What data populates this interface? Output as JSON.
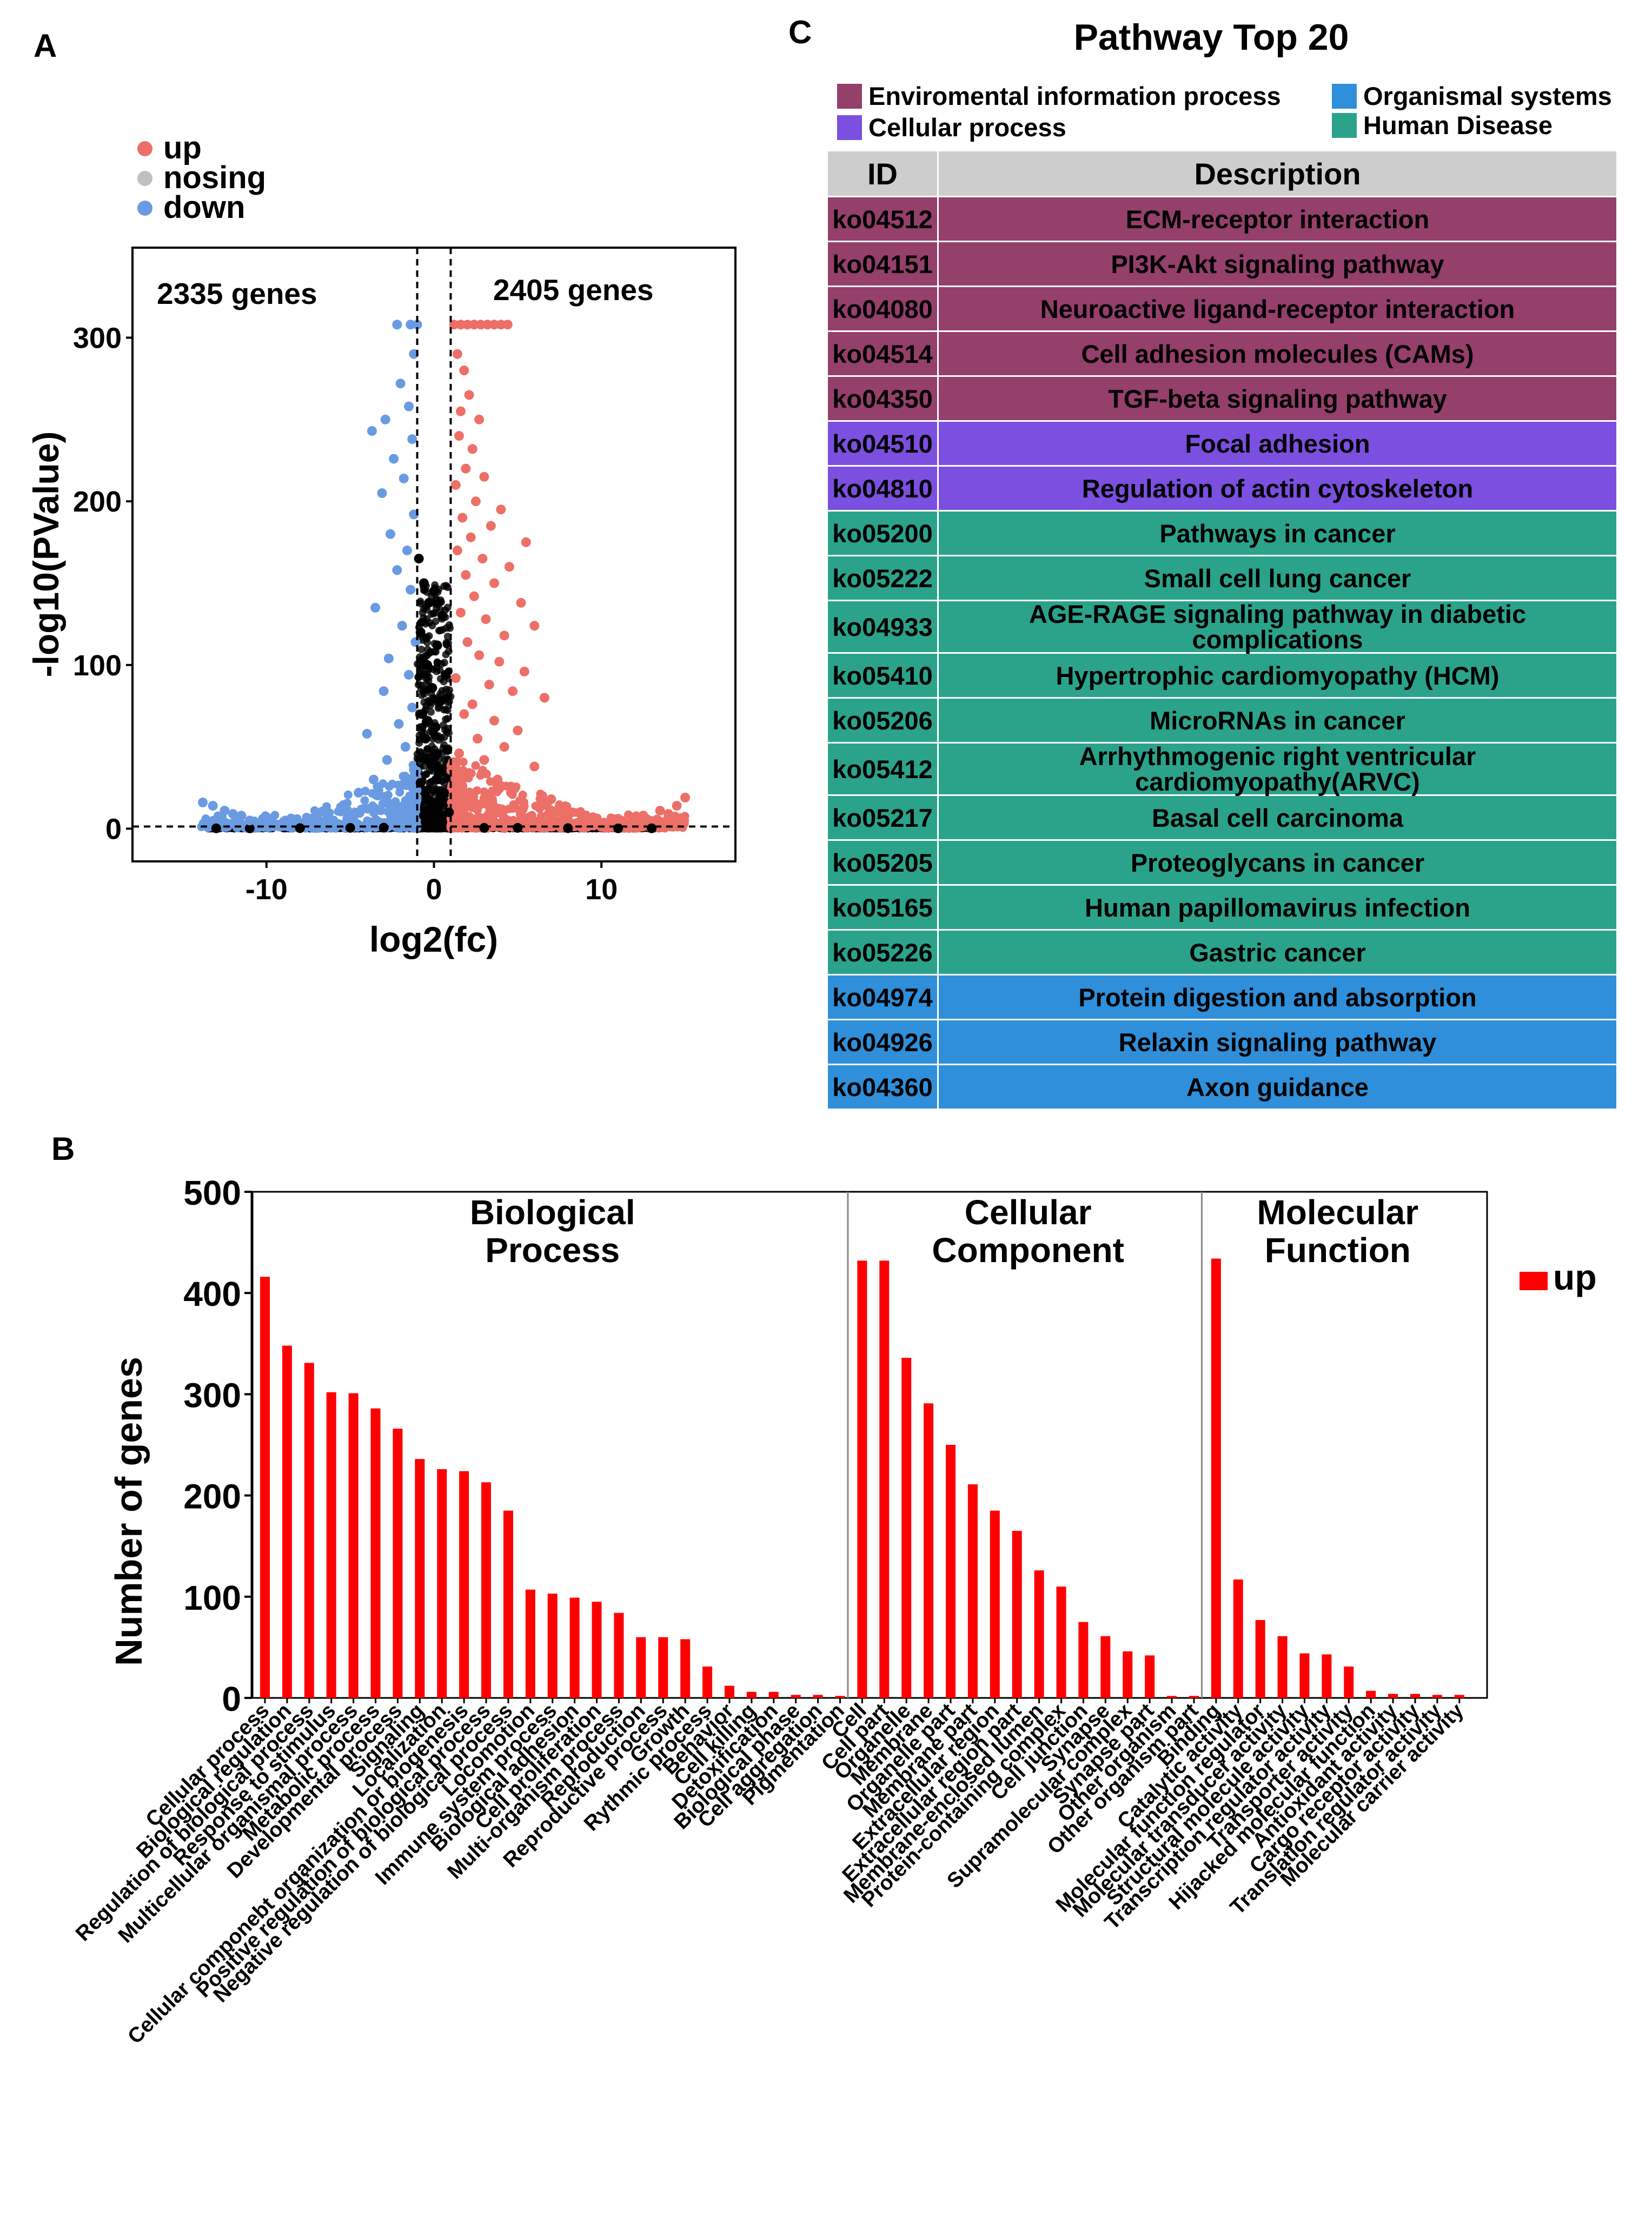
{
  "panel_labels": {
    "a": "A",
    "b": "B",
    "c": "C"
  },
  "colors": {
    "up": "#ec7068",
    "nosing": "#c0c0c0",
    "down": "#6a9be2",
    "bar_up": "#ff0000",
    "environmental": "#953f6b",
    "cellular": "#7b4fe0",
    "organismal": "#2f8fda",
    "human_disease": "#2ba38a",
    "header": "#cdcdcd"
  },
  "chart_data": [
    {
      "type": "scatter",
      "panel": "A",
      "legend": [
        "up",
        "nosing",
        "down"
      ],
      "annotations": {
        "left": "2335 genes",
        "right": "2405 genes"
      },
      "xlabel": "log2(fc)",
      "ylabel": "-log10(PValue)",
      "xlim": [
        -18,
        18
      ],
      "ylim": [
        -20,
        355
      ],
      "xticks": [
        -10,
        0,
        10
      ],
      "yticks": [
        0,
        100,
        200,
        300
      ],
      "thresholds": {
        "log2fc": [
          -1,
          1
        ],
        "pvalue_line": 1.3
      },
      "counts": {
        "down": 2335,
        "up": 2405
      },
      "highlighted_points": {
        "up": [
          [
            1.2,
            308
          ],
          [
            1.6,
            308
          ],
          [
            2.0,
            308
          ],
          [
            2.4,
            308
          ],
          [
            2.8,
            308
          ],
          [
            3.2,
            308
          ],
          [
            3.6,
            308
          ],
          [
            4.0,
            308
          ],
          [
            4.4,
            308
          ],
          [
            1.4,
            290
          ],
          [
            1.8,
            280
          ],
          [
            2.1,
            265
          ],
          [
            1.6,
            255
          ],
          [
            2.7,
            250
          ],
          [
            1.5,
            240
          ],
          [
            2.3,
            232
          ],
          [
            1.9,
            220
          ],
          [
            3.0,
            215
          ],
          [
            1.3,
            210
          ],
          [
            2.5,
            200
          ],
          [
            4.0,
            195
          ],
          [
            1.7,
            190
          ],
          [
            3.4,
            185
          ],
          [
            2.2,
            178
          ],
          [
            5.5,
            175
          ],
          [
            1.4,
            170
          ],
          [
            2.9,
            165
          ],
          [
            4.5,
            160
          ],
          [
            1.9,
            155
          ],
          [
            3.6,
            150
          ],
          [
            2.4,
            142
          ],
          [
            5.2,
            138
          ],
          [
            1.6,
            132
          ],
          [
            3.1,
            128
          ],
          [
            6.0,
            124
          ],
          [
            4.2,
            118
          ],
          [
            2.0,
            114
          ],
          [
            2.7,
            106
          ],
          [
            3.9,
            102
          ],
          [
            5.4,
            96
          ],
          [
            1.3,
            92
          ],
          [
            3.3,
            88
          ],
          [
            4.7,
            84
          ],
          [
            6.6,
            80
          ],
          [
            2.3,
            76
          ],
          [
            1.8,
            70
          ],
          [
            3.6,
            66
          ],
          [
            5.0,
            60
          ],
          [
            2.6,
            55
          ],
          [
            4.2,
            50
          ],
          [
            1.5,
            46
          ],
          [
            3.0,
            42
          ],
          [
            6.0,
            38
          ],
          [
            2.1,
            34
          ],
          [
            3.8,
            30
          ],
          [
            1.7,
            26
          ],
          [
            4.6,
            22
          ],
          [
            7.0,
            18
          ],
          [
            2.8,
            15
          ],
          [
            5.3,
            12
          ],
          [
            8.0,
            9
          ],
          [
            9.5,
            7
          ],
          [
            11.0,
            6
          ],
          [
            12.5,
            8
          ],
          [
            13.5,
            11
          ],
          [
            14.5,
            14
          ],
          [
            15.0,
            19
          ],
          [
            10.5,
            4
          ],
          [
            12.0,
            5
          ],
          [
            14.0,
            9
          ]
        ],
        "down": [
          [
            -1.0,
            308
          ],
          [
            -1.4,
            308
          ],
          [
            -2.2,
            308
          ],
          [
            -1.2,
            290
          ],
          [
            -2.0,
            272
          ],
          [
            -1.5,
            258
          ],
          [
            -2.9,
            250
          ],
          [
            -3.7,
            243
          ],
          [
            -1.3,
            238
          ],
          [
            -2.4,
            226
          ],
          [
            -1.8,
            214
          ],
          [
            -3.1,
            205
          ],
          [
            -1.2,
            192
          ],
          [
            -2.6,
            180
          ],
          [
            -1.6,
            170
          ],
          [
            -2.2,
            158
          ],
          [
            -1.4,
            146
          ],
          [
            -3.5,
            135
          ],
          [
            -1.9,
            124
          ],
          [
            -1.1,
            114
          ],
          [
            -2.7,
            104
          ],
          [
            -1.5,
            94
          ],
          [
            -3.0,
            84
          ],
          [
            -1.3,
            74
          ],
          [
            -2.1,
            64
          ],
          [
            -4.0,
            58
          ],
          [
            -1.7,
            50
          ],
          [
            -2.8,
            42
          ],
          [
            -1.2,
            36
          ],
          [
            -3.6,
            30
          ],
          [
            -2.0,
            26
          ],
          [
            -4.5,
            22
          ],
          [
            -1.5,
            18
          ],
          [
            -2.5,
            14
          ],
          [
            -5.5,
            11
          ],
          [
            -7.0,
            8
          ],
          [
            -8.5,
            6
          ],
          [
            -10.0,
            7
          ],
          [
            -11.5,
            8
          ],
          [
            -12.5,
            11
          ],
          [
            -13.2,
            14
          ],
          [
            -13.8,
            16
          ],
          [
            -9.0,
            4
          ],
          [
            -11.0,
            5
          ],
          [
            -6.0,
            5
          ],
          [
            -12.0,
            9
          ]
        ],
        "nosing": [
          [
            -0.9,
            165
          ],
          [
            -0.6,
            150
          ],
          [
            0.0,
            145
          ],
          [
            -0.3,
            138
          ],
          [
            0.5,
            130
          ],
          [
            -0.8,
            120
          ],
          [
            0.2,
            112
          ],
          [
            -0.4,
            100
          ],
          [
            0.7,
            94
          ],
          [
            -0.1,
            86
          ],
          [
            0.4,
            78
          ],
          [
            -0.7,
            70
          ],
          [
            0.1,
            62
          ],
          [
            -0.5,
            55
          ],
          [
            0.8,
            48
          ],
          [
            -0.2,
            40
          ],
          [
            0.3,
            34
          ],
          [
            -0.8,
            28
          ],
          [
            0.6,
            22
          ],
          [
            -0.4,
            18
          ],
          [
            0.0,
            14
          ],
          [
            0.9,
            10
          ],
          [
            -0.6,
            8
          ],
          [
            0.3,
            6
          ],
          [
            -5,
            0.5
          ],
          [
            -3,
            0.6
          ],
          [
            3,
            0.5
          ],
          [
            5,
            0.5
          ],
          [
            -8,
            0.3
          ],
          [
            8,
            0.3
          ],
          [
            -11,
            0.2
          ],
          [
            11,
            0.2
          ],
          [
            -13,
            0.2
          ],
          [
            13,
            0.2
          ],
          [
            -0.2,
            3
          ],
          [
            0.2,
            3
          ],
          [
            0.5,
            4
          ],
          [
            -0.5,
            4
          ]
        ]
      }
    },
    {
      "type": "bar",
      "panel": "B",
      "ylabel": "Number of genes",
      "ylim": [
        0,
        500
      ],
      "yticks": [
        0,
        100,
        200,
        300,
        400,
        500
      ],
      "legend": [
        "up"
      ],
      "groups": [
        {
          "name": "Biological Process",
          "title_lines": [
            "Biological",
            "Process"
          ],
          "categories": [
            "Cellular process",
            "Biological regulation",
            "Regulation of biological process",
            "Response to stimulus",
            "Multicellular organismal process",
            "Metabolic process",
            "Developmental process",
            "Signaling",
            "Localization",
            "Cellular componebt organization or biogenesis",
            "Positive regulation of biological process",
            "Negative regulation of biological process",
            "Locomotion",
            "Immune system process",
            "Biological adhesion",
            "Cell proliferation",
            "Multi-organism process",
            "Reproduction",
            "Reproductive process",
            "Growth",
            "Rythmic process",
            "Behavior",
            "Cell killing",
            "Detoxification",
            "Biological phase",
            "Cell aggregation",
            "Pigmentation"
          ],
          "values": [
            416,
            348,
            331,
            302,
            301,
            286,
            266,
            236,
            226,
            224,
            213,
            185,
            107,
            103,
            99,
            95,
            84,
            60,
            60,
            58,
            31,
            12,
            6,
            6,
            3,
            3,
            2
          ]
        },
        {
          "name": "Cellular Component",
          "title_lines": [
            "Cellular",
            "Component"
          ],
          "categories": [
            "Cell",
            "Cell part",
            "Organelle",
            "Membrane",
            "Organelle part",
            "Membrane part",
            "Extracellular region",
            "Extracellular region part",
            "Membrane-enclosed lumen",
            "Protein-containing complex",
            "Cell junction",
            "Synapse",
            "Supramolecular complex",
            "Synapse part",
            "Other organism",
            "Other organism part"
          ],
          "values": [
            432,
            432,
            336,
            291,
            250,
            211,
            185,
            165,
            126,
            110,
            75,
            61,
            46,
            42,
            2,
            2
          ]
        },
        {
          "name": "Molecular Function",
          "title_lines": [
            "Molecular",
            "Function"
          ],
          "categories": [
            "Binding",
            "Catalytic activity",
            "Molecular function regulator",
            "Molecular transducer activity",
            "Structural molecule activity",
            "Transcription regulator activity",
            "Transporter activity",
            "Hijacked molecular function",
            "Antioxidant activity",
            "Cargo receptor activity",
            "Translation regulator activity",
            "Molecular carrier activity"
          ],
          "values": [
            434,
            117,
            77,
            61,
            44,
            43,
            31,
            7,
            4,
            4,
            3,
            3
          ]
        }
      ]
    },
    {
      "type": "table",
      "panel": "C",
      "title": "Pathway Top 20",
      "legend": [
        {
          "label": "Enviromental information process",
          "category": "environmental"
        },
        {
          "label": "Organismal systems",
          "category": "organismal"
        },
        {
          "label": "Cellular process",
          "category": "cellular"
        },
        {
          "label": "Human Disease",
          "category": "human_disease"
        }
      ],
      "columns": [
        "ID",
        "Description"
      ],
      "rows": [
        {
          "id": "ko04512",
          "description": "ECM-receptor interaction",
          "category": "environmental"
        },
        {
          "id": "ko04151",
          "description": "PI3K-Akt signaling pathway",
          "category": "environmental"
        },
        {
          "id": "ko04080",
          "description": "Neuroactive ligand-receptor interaction",
          "category": "environmental"
        },
        {
          "id": "ko04514",
          "description": "Cell adhesion molecules (CAMs)",
          "category": "environmental"
        },
        {
          "id": "ko04350",
          "description": "TGF-beta signaling pathway",
          "category": "environmental"
        },
        {
          "id": "ko04510",
          "description": "Focal adhesion",
          "category": "cellular"
        },
        {
          "id": "ko04810",
          "description": "Regulation of actin cytoskeleton",
          "category": "cellular"
        },
        {
          "id": "ko05200",
          "description": "Pathways in cancer",
          "category": "human_disease"
        },
        {
          "id": "ko05222",
          "description": "Small cell lung cancer",
          "category": "human_disease"
        },
        {
          "id": "ko04933",
          "description": "AGE-RAGE signaling pathway in diabetic complications",
          "category": "human_disease"
        },
        {
          "id": "ko05410",
          "description": "Hypertrophic cardiomyopathy (HCM)",
          "category": "human_disease"
        },
        {
          "id": "ko05206",
          "description": "MicroRNAs in cancer",
          "category": "human_disease"
        },
        {
          "id": "ko05412",
          "description": "Arrhythmogenic right ventricular cardiomyopathy(ARVC)",
          "category": "human_disease"
        },
        {
          "id": "ko05217",
          "description": "Basal cell carcinoma",
          "category": "human_disease"
        },
        {
          "id": "ko05205",
          "description": "Proteoglycans in cancer",
          "category": "human_disease"
        },
        {
          "id": "ko05165",
          "description": "Human papillomavirus infection",
          "category": "human_disease"
        },
        {
          "id": "ko05226",
          "description": "Gastric cancer",
          "category": "human_disease"
        },
        {
          "id": "ko04974",
          "description": "Protein digestion and absorption",
          "category": "organismal"
        },
        {
          "id": "ko04926",
          "description": "Relaxin signaling pathway",
          "category": "organismal"
        },
        {
          "id": "ko04360",
          "description": "Axon guidance",
          "category": "organismal"
        }
      ]
    }
  ]
}
